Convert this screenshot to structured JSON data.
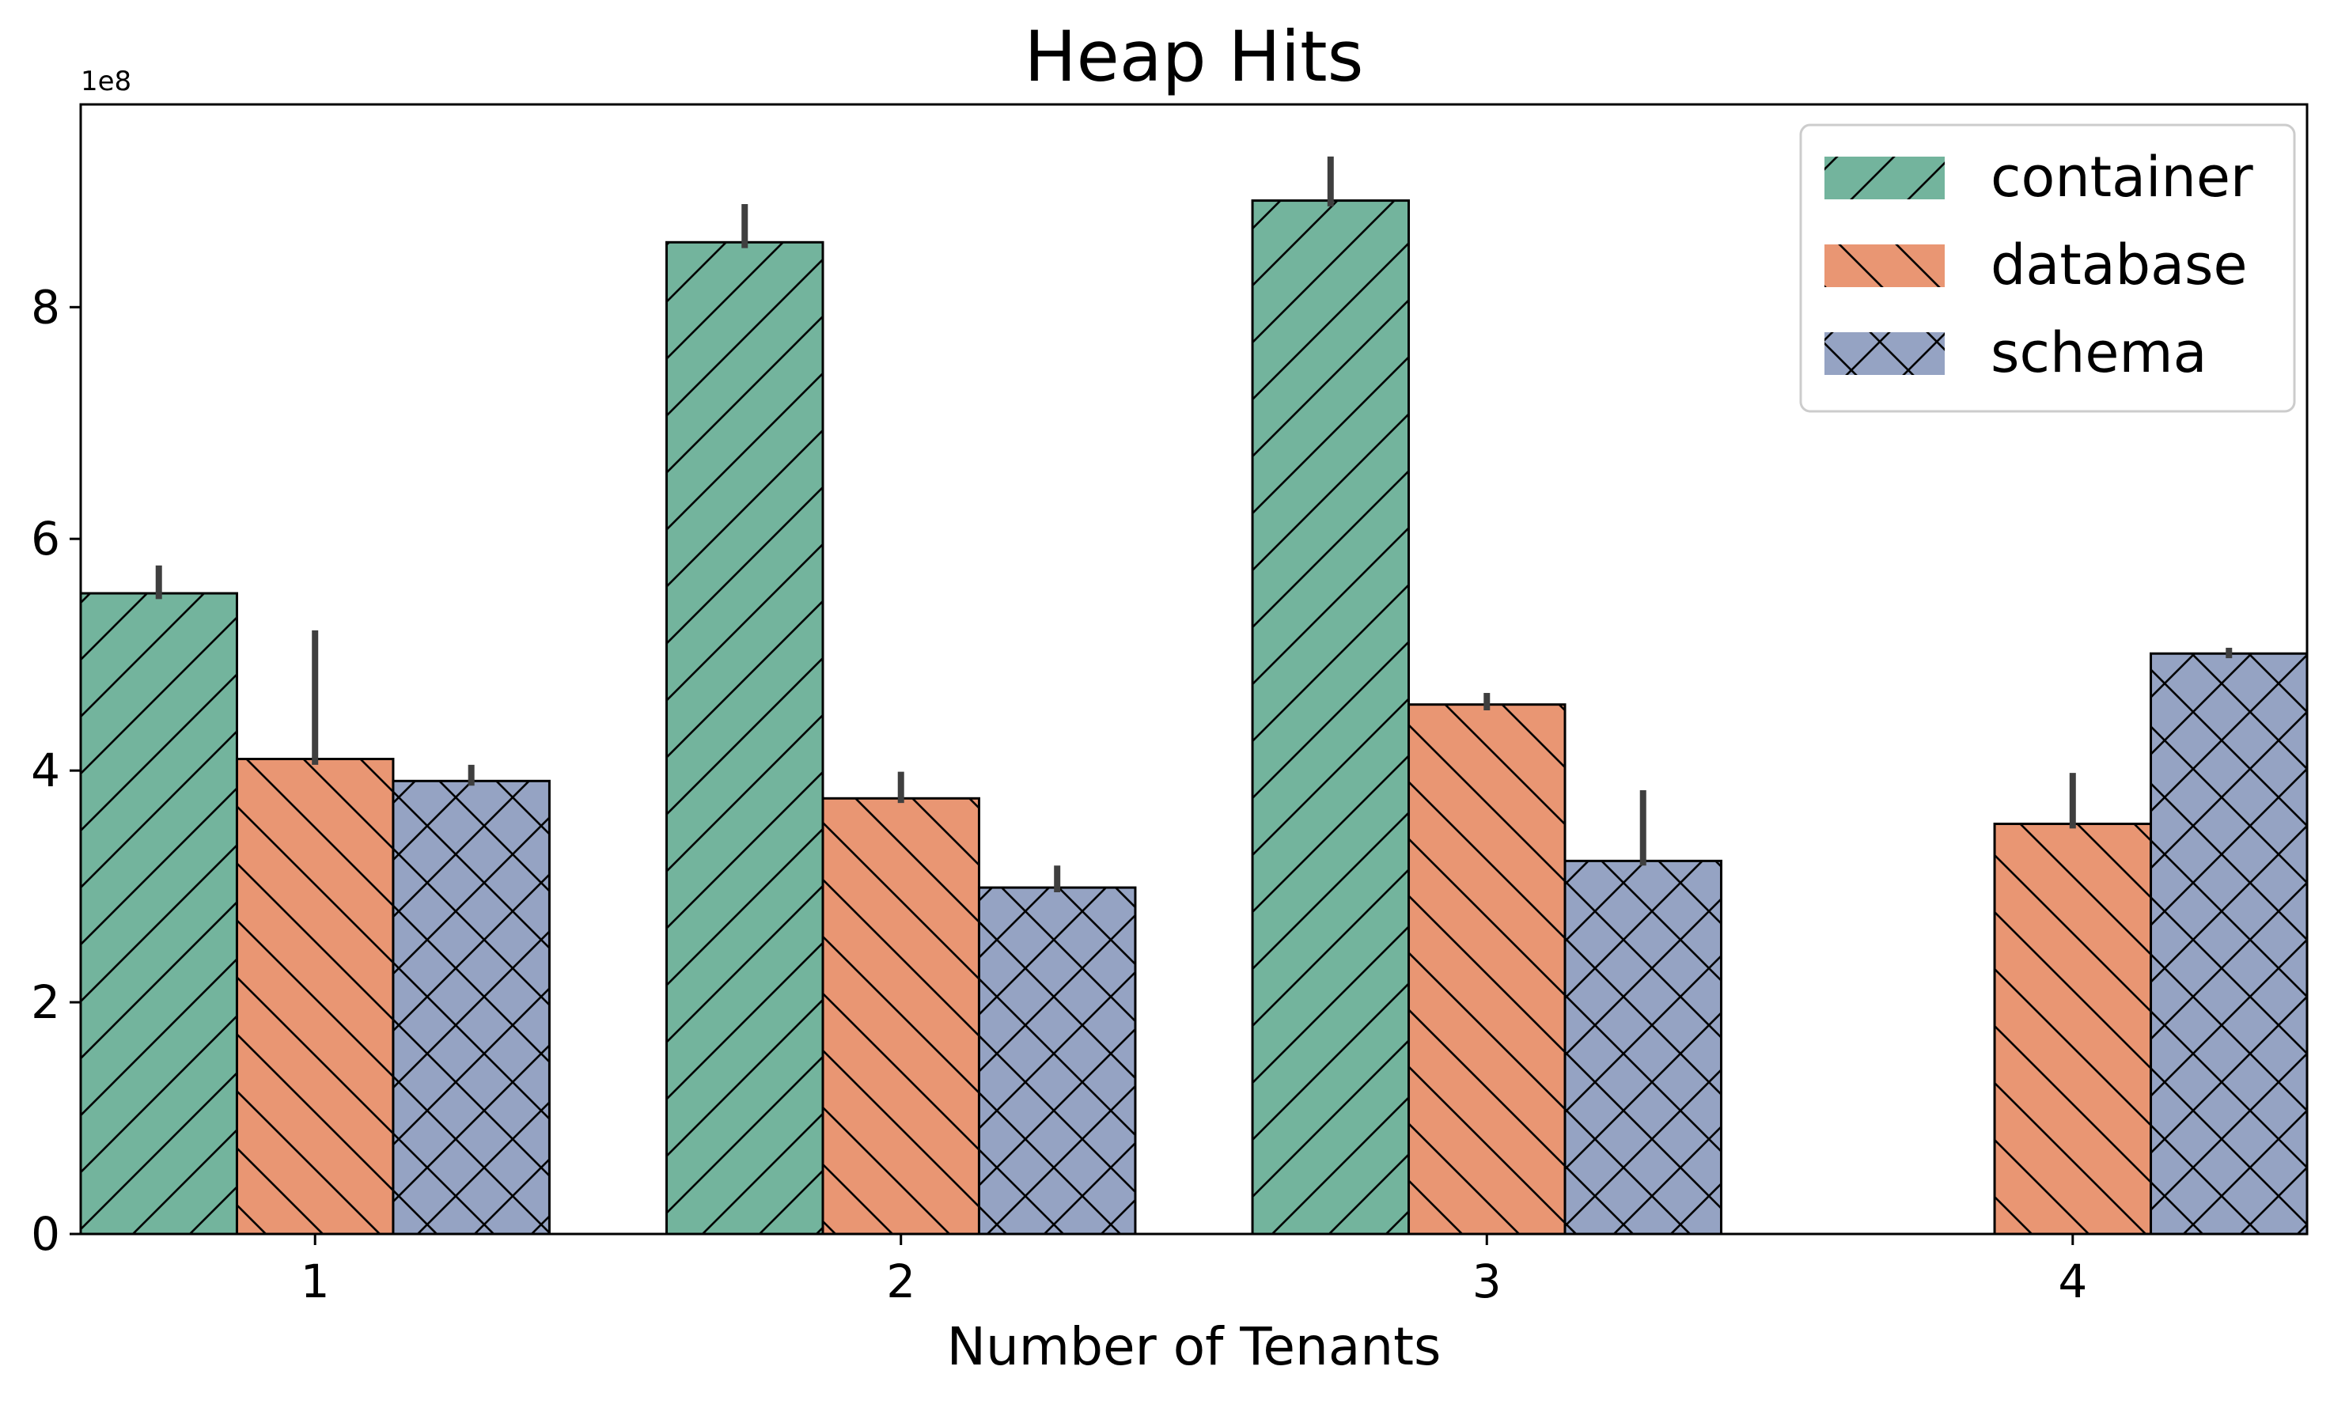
{
  "chart_data": {
    "type": "bar",
    "title": "Heap Hits",
    "xlabel": "Number of Tenants",
    "ylabel": "",
    "y_offset_label": "1e8",
    "y_scale": 100000000,
    "categories": [
      "1",
      "2",
      "3",
      "4"
    ],
    "ylim": [
      0,
      975000000
    ],
    "yticks": [
      0,
      200000000,
      400000000,
      600000000,
      800000000
    ],
    "ytick_labels": [
      "0",
      "2",
      "4",
      "6",
      "8"
    ],
    "grid": false,
    "legend_position": "top-right",
    "series": [
      {
        "name": "container",
        "color": "#73b49d",
        "hatch": "forward-diagonal",
        "values": [
          553000000,
          856000000,
          892000000,
          null
        ],
        "error_low": [
          548000000,
          851000000,
          887000000,
          null
        ],
        "error_high": [
          577000000,
          889000000,
          930000000,
          null
        ]
      },
      {
        "name": "database",
        "color": "#e99673",
        "hatch": "back-diagonal",
        "values": [
          410000000,
          376000000,
          457000000,
          354000000
        ],
        "error_low": [
          405000000,
          372000000,
          452000000,
          350000000
        ],
        "error_high": [
          521000000,
          399000000,
          467000000,
          398000000
        ]
      },
      {
        "name": "schema",
        "color": "#95a3c3",
        "hatch": "crosshatch",
        "values": [
          391000000,
          299000000,
          322000000,
          501000000
        ],
        "error_low": [
          387000000,
          295000000,
          318000000,
          497000000
        ],
        "error_high": [
          405000000,
          318000000,
          383000000,
          506000000
        ]
      }
    ]
  }
}
